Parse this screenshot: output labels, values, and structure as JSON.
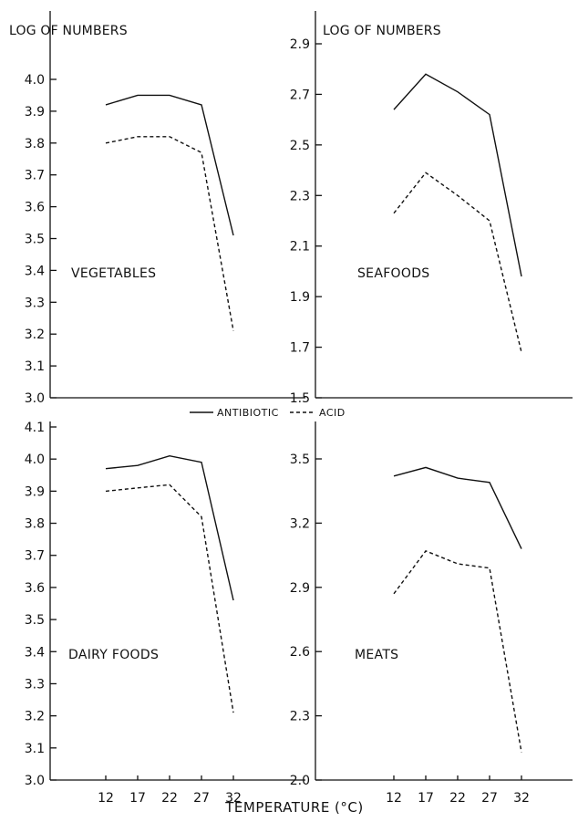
{
  "legend": {
    "items": [
      {
        "label": "ANTIBIOTIC",
        "style": "solid"
      },
      {
        "label": "ACID",
        "style": "dashed"
      }
    ]
  },
  "xlabel": "TEMPERATURE (°C)",
  "chart_data": [
    {
      "type": "line",
      "label": "VEGETABLES",
      "ylabel": "LOG OF NUMBERS",
      "ylim": [
        3.0,
        4.0
      ],
      "yticks": [
        "3.0",
        "3.1",
        "3.2",
        "3.3",
        "3.4",
        "3.5",
        "3.6",
        "3.7",
        "3.8",
        "3.9",
        "4.0"
      ],
      "x": [
        12,
        17,
        22,
        27,
        32
      ],
      "xticks": [],
      "series": [
        {
          "name": "ANTIBIOTIC",
          "style": "solid",
          "values": [
            3.92,
            3.95,
            3.95,
            3.92,
            3.51
          ]
        },
        {
          "name": "ACID",
          "style": "dashed",
          "values": [
            3.8,
            3.82,
            3.82,
            3.77,
            3.21
          ]
        }
      ]
    },
    {
      "type": "line",
      "label": "SEAFOODS",
      "ylabel": "LOG OF NUMBERS",
      "ylim": [
        1.5,
        2.9
      ],
      "yticks": [
        "1.5",
        "1.7",
        "1.9",
        "2.1",
        "2.3",
        "2.5",
        "2.7",
        "2.9"
      ],
      "x": [
        12,
        17,
        22,
        27,
        32
      ],
      "xticks": [],
      "series": [
        {
          "name": "ANTIBIOTIC",
          "style": "solid",
          "values": [
            2.64,
            2.78,
            2.71,
            2.62,
            1.98
          ]
        },
        {
          "name": "ACID",
          "style": "dashed",
          "values": [
            2.23,
            2.39,
            2.3,
            2.2,
            1.68
          ]
        }
      ]
    },
    {
      "type": "line",
      "label": "DAIRY FOODS",
      "ylabel": "",
      "ylim": [
        3.0,
        4.1
      ],
      "yticks": [
        "3.0",
        "3.1",
        "3.2",
        "3.3",
        "3.4",
        "3.5",
        "3.6",
        "3.7",
        "3.8",
        "3.9",
        "4.0",
        "4.1"
      ],
      "x": [
        12,
        17,
        22,
        27,
        32
      ],
      "xticks": [
        "12",
        "17",
        "22",
        "27",
        "32"
      ],
      "series": [
        {
          "name": "ANTIBIOTIC",
          "style": "solid",
          "values": [
            3.97,
            3.98,
            4.01,
            3.99,
            3.56
          ]
        },
        {
          "name": "ACID",
          "style": "dashed",
          "values": [
            3.9,
            3.91,
            3.92,
            3.82,
            3.21
          ]
        }
      ]
    },
    {
      "type": "line",
      "label": "MEATS",
      "ylabel": "",
      "ylim": [
        2.0,
        3.5
      ],
      "yticks": [
        "2.0",
        "2.3",
        "2.6",
        "2.9",
        "3.2",
        "3.5"
      ],
      "x": [
        12,
        17,
        22,
        27,
        32
      ],
      "xticks": [
        "12",
        "17",
        "22",
        "27",
        "32"
      ],
      "series": [
        {
          "name": "ANTIBIOTIC",
          "style": "solid",
          "values": [
            3.42,
            3.46,
            3.41,
            3.39,
            3.08
          ]
        },
        {
          "name": "ACID",
          "style": "dashed",
          "values": [
            2.87,
            3.07,
            3.01,
            2.99,
            2.13
          ]
        }
      ]
    }
  ]
}
